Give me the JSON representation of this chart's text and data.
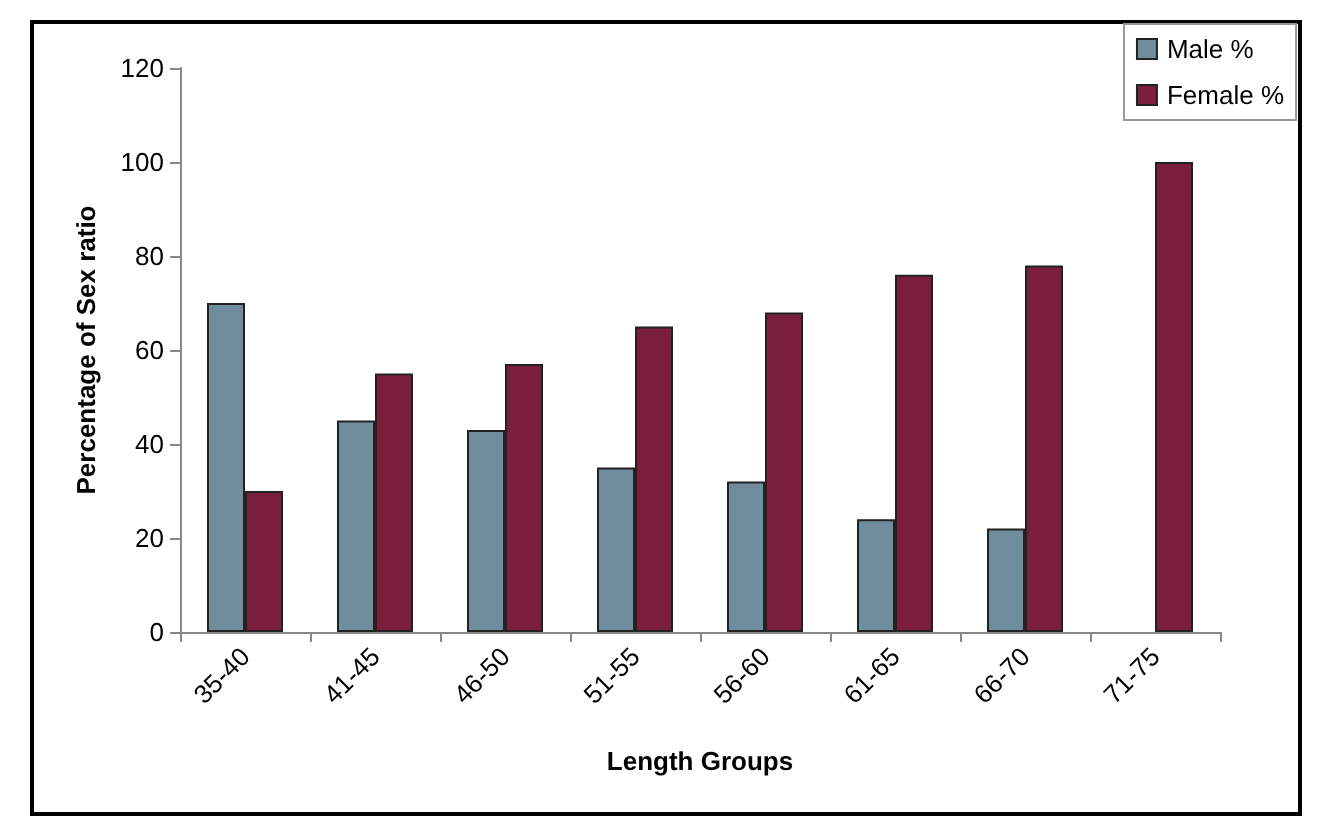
{
  "chart_data": {
    "type": "bar",
    "xlabel": "Length Groups",
    "ylabel": "Percentage of Sex ratio",
    "categories": [
      "35-40",
      "41-45",
      "46-50",
      "51-55",
      "56-60",
      "61-65",
      "66-70",
      "71-75"
    ],
    "series": [
      {
        "name": "Male %",
        "color": "#6f8d9c",
        "values": [
          70,
          45,
          43,
          35,
          32,
          24,
          22,
          null
        ]
      },
      {
        "name": "Female %",
        "color": "#7a1e3c",
        "values": [
          30,
          55,
          57,
          65,
          68,
          76,
          78,
          100
        ]
      }
    ],
    "ylim": [
      0,
      120
    ],
    "yticks": [
      0,
      20,
      40,
      60,
      80,
      100,
      120
    ],
    "grid": false,
    "legend": "top right"
  }
}
